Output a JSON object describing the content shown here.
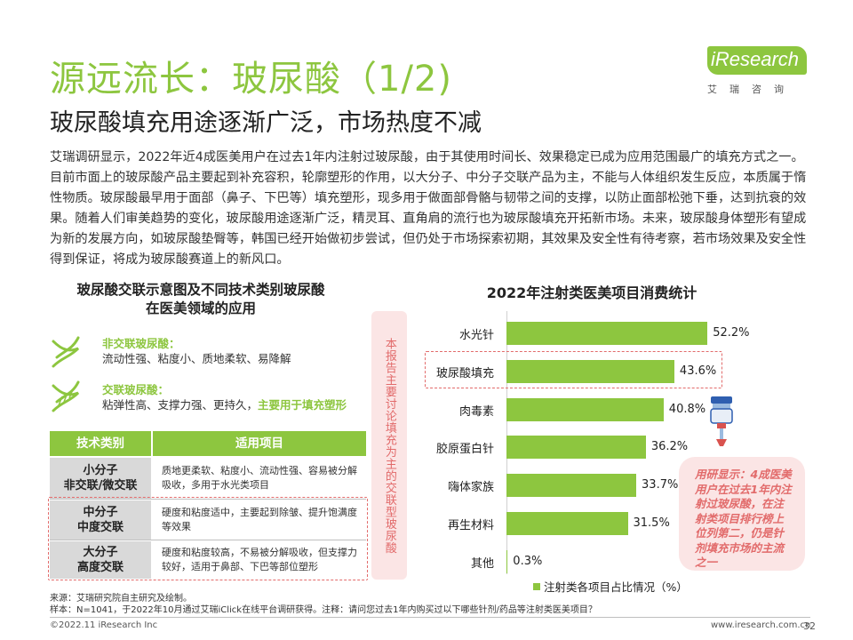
{
  "header": {
    "title": "源远流长：玻尿酸（1/2)",
    "subtitle": "玻尿酸填充用途逐渐广泛，市场热度不减"
  },
  "logo": {
    "word": "iResearch",
    "cn": "艾瑞咨询"
  },
  "intro": "艾瑞调研显示，2022年近4成医美用户在过去1年内注射过玻尿酸，由于其使用时间长、效果稳定已成为应用范围最广的填充方式之一。目前市面上的玻尿酸产品主要起到补充容积，轮廓塑形的作用，以大分子、中分子交联产品为主，不能与人体组织发生反应，本质属于惰性物质。玻尿酸最早用于面部（鼻子、下巴等）填充塑形，现多用于做面部骨骼与韧带之间的支撑，以防止面部松弛下垂，达到抗衰的效果。随着人们审美趋势的变化，玻尿酸用途逐渐广泛，精灵耳、直角肩的流行也为玻尿酸填充开拓新市场。未来，玻尿酸身体塑形有望成为新的发展方向，如玻尿酸垫臀等，韩国已经开始做初步尝试，但仍处于市场探索初期，其效果及安全性有待考察，若市场效果及安全性得到保证，将成为玻尿酸赛道上的新风口。",
  "left_section": {
    "title_line1": "玻尿酸交联示意图及不同技术类别玻尿酸",
    "title_line2": "在医美领域的应用",
    "legend": [
      {
        "title": "非交联玻尿酸：",
        "desc": "流动性强、粘度小、质地柔软、易降解",
        "highlight": ""
      },
      {
        "title": "交联玻尿酸：",
        "desc": "粘弹性高、支撑力强、更持久，",
        "highlight": "主要用于填充塑形"
      }
    ],
    "table": {
      "headers": [
        "技术类别",
        "适用项目"
      ],
      "rows": [
        {
          "type_line1": "小分子",
          "type_line2": "非交联/微交联",
          "use": "质地更柔软、粘度小、流动性强、容易被分解吸收，多用于水光类项目"
        },
        {
          "type_line1": "中分子",
          "type_line2": "中度交联",
          "use": "硬度和粘度适中，主要起到除皱、提升饱满度等效果"
        },
        {
          "type_line1": "大分子",
          "type_line2": "高度交联",
          "use": "硬度和粘度较高，不易被分解吸收，但支撑力较好，适用于鼻部、下巴等部位塑形"
        }
      ]
    }
  },
  "vertical_note": "本报告主要讨论填充为主的交联型玻尿酸",
  "chart_title": "2022年注射类医美项目消费统计",
  "chart_data": {
    "type": "bar",
    "orientation": "horizontal",
    "title": "2022年注射类医美项目消费统计",
    "categories": [
      "水光针",
      "玻尿酸填充",
      "肉毒素",
      "胶原蛋白针",
      "嗨体家族",
      "再生材料",
      "其他"
    ],
    "values": [
      52.2,
      43.6,
      40.8,
      36.2,
      33.7,
      31.5,
      0.3
    ],
    "value_labels": [
      "52.2%",
      "43.6%",
      "40.8%",
      "36.2%",
      "33.7%",
      "31.5%",
      "0.3%"
    ],
    "series": [
      {
        "name": "注射类各项目占比情况（%）",
        "values": [
          52.2,
          43.6,
          40.8,
          36.2,
          33.7,
          31.5,
          0.3
        ]
      }
    ],
    "legend_label": "注射类各项目占比情况（%）",
    "legend_position": "bottom",
    "highlighted_category": "玻尿酸填充",
    "xlim": [
      0,
      60
    ],
    "grid": false,
    "bar_color": "#8dc63f"
  },
  "callout": "用研显示：4成医美用户在过去1年内注射过玻尿酸，在注射类项目排行榜上位列第二，仍是针剂填充市场的主流之一",
  "footnotes": {
    "source": "来源：艾瑞研究院自主研究及绘制。",
    "sample": "样本：N=1041，于2022年10月通过艾瑞iClick在线平台调研获得。注释：请问您过去1年内购买过以下哪些针剂/药品等注射类医美项目？"
  },
  "footer": {
    "copyright": "©2022.11 iResearch Inc",
    "url": "www.iresearch.com.cn",
    "page": "32"
  },
  "colors": {
    "accent": "#8dc63f",
    "highlight": "#e26b6b",
    "note_bg": "#fbe5e5"
  }
}
